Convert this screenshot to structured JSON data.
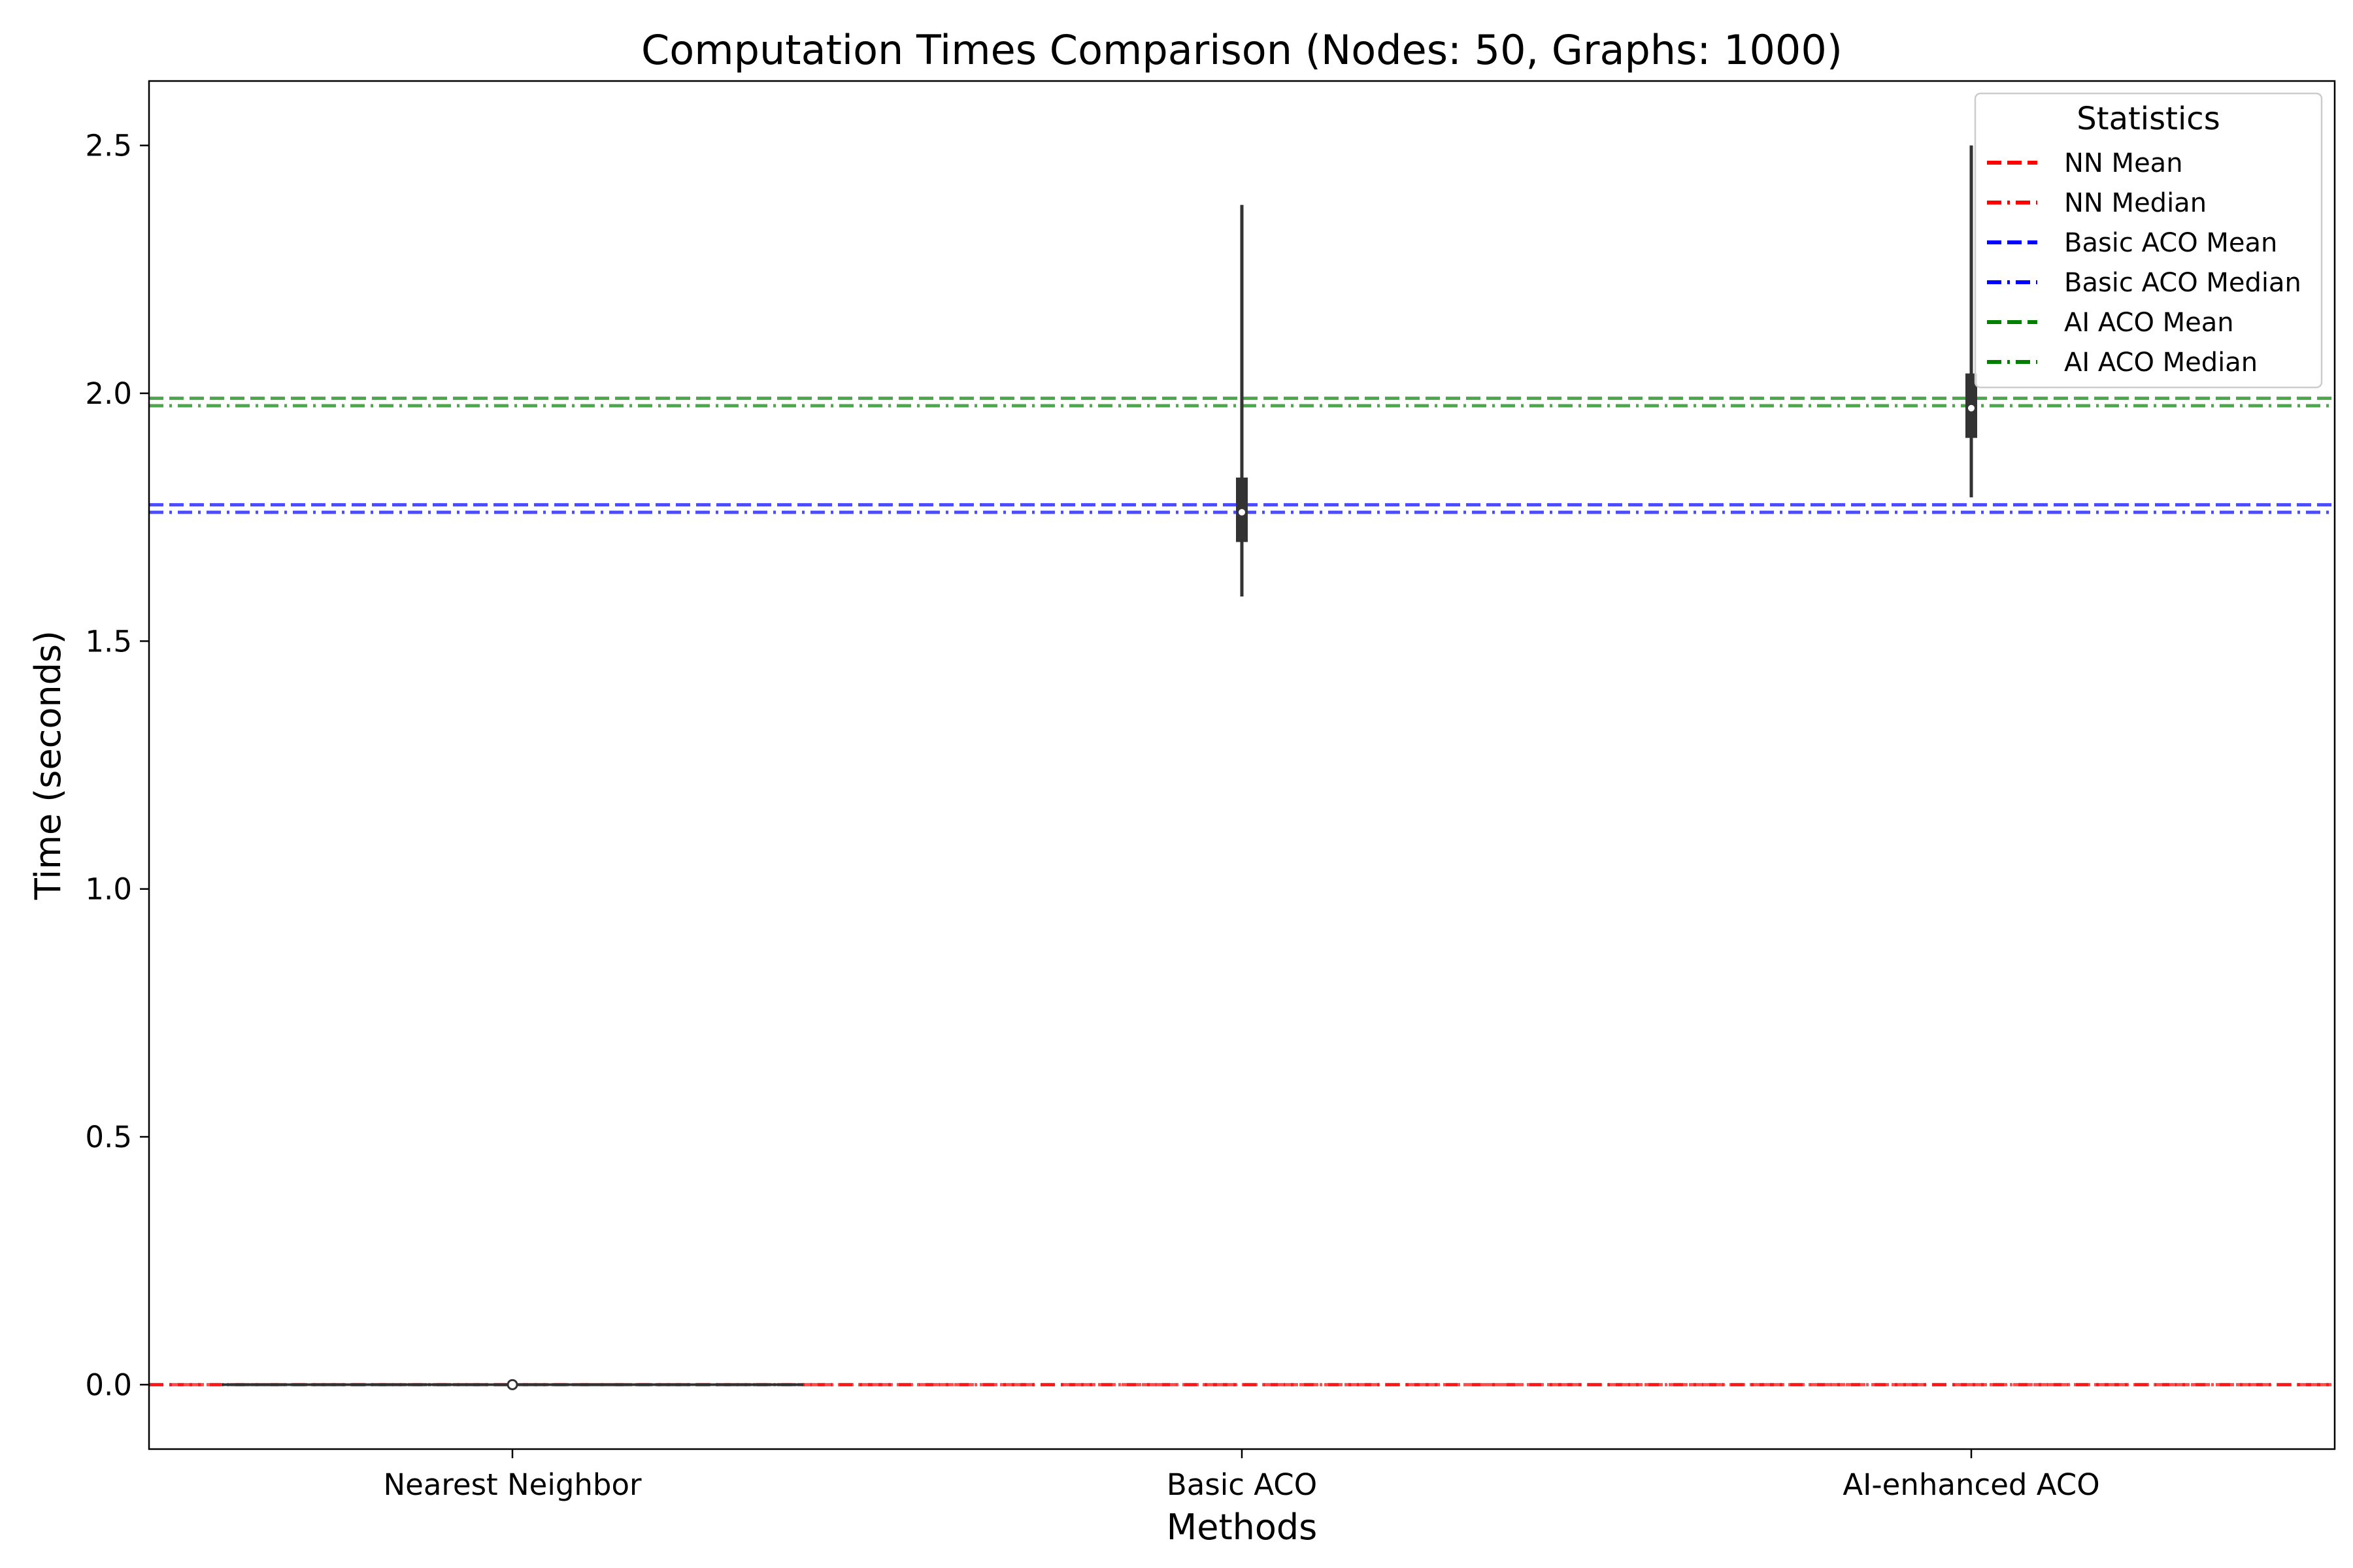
{
  "chart_data": {
    "type": "violin",
    "title": "Computation Times Comparison (Nodes: 50, Graphs: 1000)",
    "xlabel": "Methods",
    "ylabel": "Time (seconds)",
    "categories": [
      "Nearest Neighbor",
      "Basic ACO",
      "AI-enhanced ACO"
    ],
    "ylim": [
      -0.13,
      2.63
    ],
    "yticks": [
      0.0,
      0.5,
      1.0,
      1.5,
      2.0,
      2.5
    ],
    "ytick_labels": [
      "0.0",
      "0.5",
      "1.0",
      "1.5",
      "2.0",
      "2.5"
    ],
    "series": [
      {
        "name": "Nearest Neighbor",
        "min": 0.0,
        "q1": 0.0,
        "median": 0.0,
        "q3": 0.0,
        "max": 0.0,
        "whisker_low": 0.0,
        "whisker_high": 0.0
      },
      {
        "name": "Basic ACO",
        "min": 1.59,
        "q1": 1.7,
        "median": 1.76,
        "q3": 1.83,
        "max": 2.38,
        "whisker_low": 1.59,
        "whisker_high": 2.38
      },
      {
        "name": "AI-enhanced ACO",
        "min": 1.79,
        "q1": 1.91,
        "median": 1.97,
        "q3": 2.04,
        "max": 2.5,
        "whisker_low": 1.79,
        "whisker_high": 2.5
      }
    ],
    "reference_lines": [
      {
        "name": "NN Mean",
        "value": 0.0,
        "style": "dashed",
        "color": "#ff0000"
      },
      {
        "name": "NN Median",
        "value": 0.0,
        "style": "dashdot",
        "color": "#ff0000"
      },
      {
        "name": "Basic ACO Mean",
        "value": 1.775,
        "style": "dashed",
        "color": "#0000ff"
      },
      {
        "name": "Basic ACO Median",
        "value": 1.76,
        "style": "dashdot",
        "color": "#0000ff"
      },
      {
        "name": "AI ACO Mean",
        "value": 1.99,
        "style": "dashed",
        "color": "#008000"
      },
      {
        "name": "AI ACO Median",
        "value": 1.975,
        "style": "dashdot",
        "color": "#008000"
      }
    ],
    "legend": {
      "title": "Statistics",
      "placement": "top-right"
    },
    "grid": false
  },
  "colors": {
    "box": "#333333",
    "nn": "#ff0000",
    "basic": "#0000ff",
    "ai": "#008000"
  }
}
